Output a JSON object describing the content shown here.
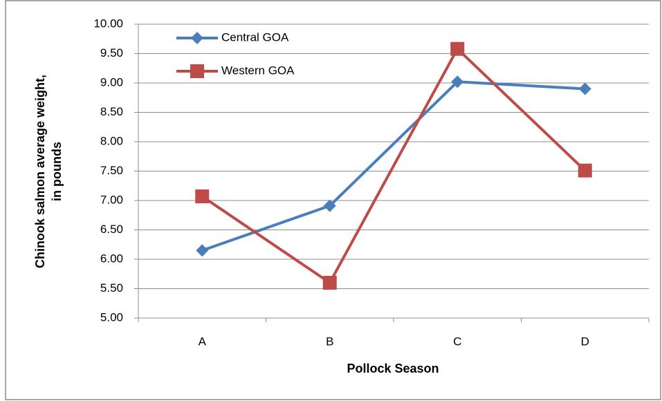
{
  "chart_data": {
    "type": "line",
    "xlabel": "Pollock Season",
    "ylabel": [
      "Chinook salmon average weight,",
      "in pounds"
    ],
    "categories": [
      "A",
      "B",
      "C",
      "D"
    ],
    "series": [
      {
        "name": "Central GOA",
        "color": "#4a7ebb",
        "marker": "diamond",
        "values": [
          6.15,
          6.91,
          9.02,
          8.9
        ]
      },
      {
        "name": "Western GOA",
        "color": "#be4b48",
        "marker": "square",
        "values": [
          7.07,
          5.6,
          9.58,
          7.51
        ]
      }
    ],
    "ylim": [
      5,
      10
    ],
    "yticks": [
      {
        "value": 5,
        "label": "5.00"
      },
      {
        "value": 5.5,
        "label": "5.50"
      },
      {
        "value": 6,
        "label": "6.00"
      },
      {
        "value": 6.5,
        "label": "6.50"
      },
      {
        "value": 7,
        "label": "7.00"
      },
      {
        "value": 7.5,
        "label": "7.50"
      },
      {
        "value": 8,
        "label": "8.00"
      },
      {
        "value": 8.5,
        "label": "8.50"
      },
      {
        "value": 9,
        "label": "9.00"
      },
      {
        "value": 9.5,
        "label": "9.50"
      },
      {
        "value": 10,
        "label": "10.00"
      }
    ],
    "grid": true
  }
}
